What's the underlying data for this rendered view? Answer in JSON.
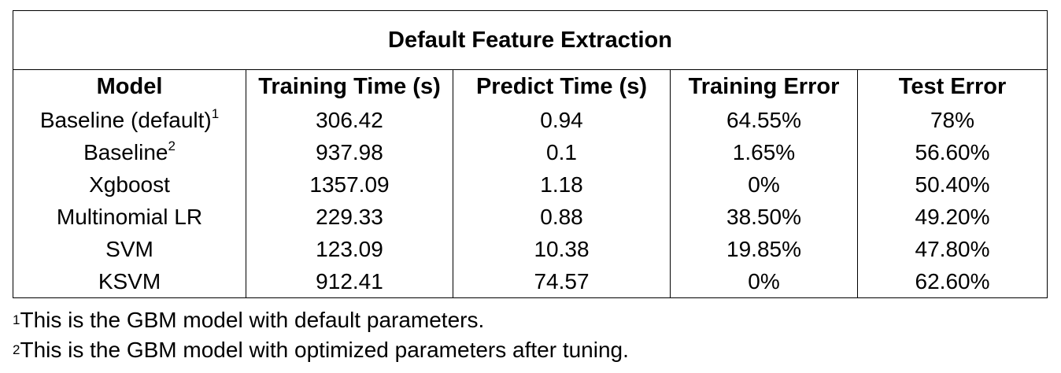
{
  "table": {
    "title": "Default Feature Extraction",
    "columns": [
      "Model",
      "Training Time (s)",
      "Predict Time (s)",
      "Training Error",
      "Test Error"
    ],
    "rows": [
      {
        "model": "Baseline (default)",
        "sup": "1",
        "training_time": "306.42",
        "predict_time": "0.94",
        "training_error": "64.55%",
        "test_error": "78%"
      },
      {
        "model": "Baseline",
        "sup": "2",
        "training_time": "937.98",
        "predict_time": "0.1",
        "training_error": "1.65%",
        "test_error": "56.60%"
      },
      {
        "model": "Xgboost",
        "sup": "",
        "training_time": "1357.09",
        "predict_time": "1.18",
        "training_error": "0%",
        "test_error": "50.40%"
      },
      {
        "model": "Multinomial LR",
        "sup": "",
        "training_time": "229.33",
        "predict_time": "0.88",
        "training_error": "38.50%",
        "test_error": "49.20%"
      },
      {
        "model": "SVM",
        "sup": "",
        "training_time": "123.09",
        "predict_time": "10.38",
        "training_error": "19.85%",
        "test_error": "47.80%"
      },
      {
        "model": "KSVM",
        "sup": "",
        "training_time": "912.41",
        "predict_time": "74.57",
        "training_error": "0%",
        "test_error": "62.60%"
      }
    ]
  },
  "footnotes": [
    {
      "mark": "1",
      "text": "This is the GBM model with default parameters."
    },
    {
      "mark": "2",
      "text": "This is the GBM model with optimized parameters after tuning."
    }
  ]
}
